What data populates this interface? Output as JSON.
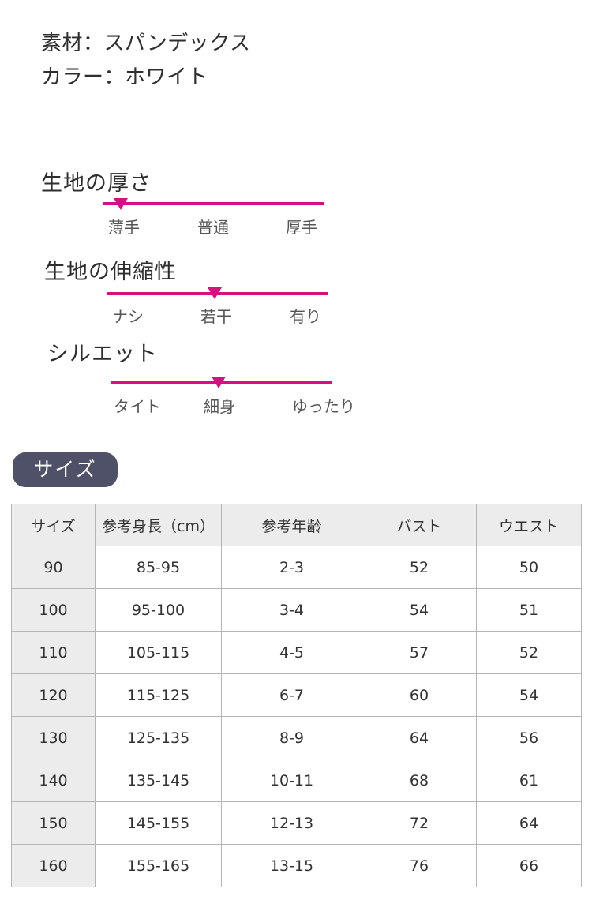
{
  "specs": {
    "material": "素材：スパンデックス",
    "color": "カラー：ホワイト"
  },
  "scales": [
    {
      "title": "生地の厚さ",
      "labels": [
        "薄手",
        "普通",
        "厚手"
      ],
      "selected": "薄手"
    },
    {
      "title": "生地の伸縮性",
      "labels": [
        "ナシ",
        "若干",
        "有り"
      ],
      "selected": "若干"
    },
    {
      "title": "シルエット",
      "labels": [
        "タイト",
        "細身",
        "ゆったり"
      ],
      "selected": "細身"
    }
  ],
  "accent_color": "#d6117f",
  "size_section": {
    "badge": "サイズ",
    "headers": [
      "サイズ",
      "参考身長（cm）",
      "参考年齢",
      "バスト",
      "ウエスト"
    ],
    "rows": [
      [
        "90",
        "85-95",
        "2-3",
        "52",
        "50"
      ],
      [
        "100",
        "95-100",
        "3-4",
        "54",
        "51"
      ],
      [
        "110",
        "105-115",
        "4-5",
        "57",
        "52"
      ],
      [
        "120",
        "115-125",
        "6-7",
        "60",
        "54"
      ],
      [
        "130",
        "125-135",
        "8-9",
        "64",
        "56"
      ],
      [
        "140",
        "135-145",
        "10-11",
        "68",
        "61"
      ],
      [
        "150",
        "145-155",
        "12-13",
        "72",
        "64"
      ],
      [
        "160",
        "155-165",
        "13-15",
        "76",
        "66"
      ]
    ]
  }
}
